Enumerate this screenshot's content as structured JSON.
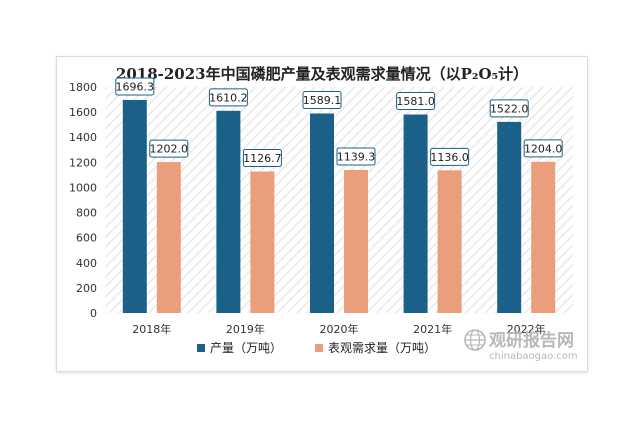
{
  "colors": {
    "series_1": "#1b6088",
    "series_2": "#ea9e7c",
    "label_border": "#1b6088",
    "plot_hatch": "#e9e9e9",
    "watermark": "#b8b8b8"
  },
  "watermark": {
    "title": "观研报告网",
    "url": "chinabaogao.com",
    "icon": "globe-logo-icon"
  },
  "chart_data": {
    "type": "bar",
    "title": "2018-2023年中国磷肥产量及表观需求量情况（以P₂O₅计）",
    "categories": [
      "2018年",
      "2019年",
      "2020年",
      "2021年",
      "2022年"
    ],
    "series": [
      {
        "name": "产量（万吨）",
        "values": [
          1696.3,
          1610.2,
          1589.1,
          1581.0,
          1522.0
        ],
        "labels": [
          "1696.3",
          "1610.2",
          "1589.1",
          "1581.0",
          "1522.0"
        ]
      },
      {
        "name": "表观需求量（万吨）",
        "values": [
          1202.0,
          1126.7,
          1139.3,
          1136.0,
          1204.0
        ],
        "labels": [
          "1202.0",
          "1126.7",
          "1139.3",
          "1136.0",
          "1204.0"
        ]
      }
    ],
    "ylim": [
      0,
      1800
    ],
    "yticks": [
      "0",
      "200",
      "400",
      "600",
      "800",
      "1000",
      "1200",
      "1400",
      "1600",
      "1800"
    ],
    "grid": false,
    "legend": "bottom-center",
    "xlabel": "",
    "ylabel": ""
  }
}
